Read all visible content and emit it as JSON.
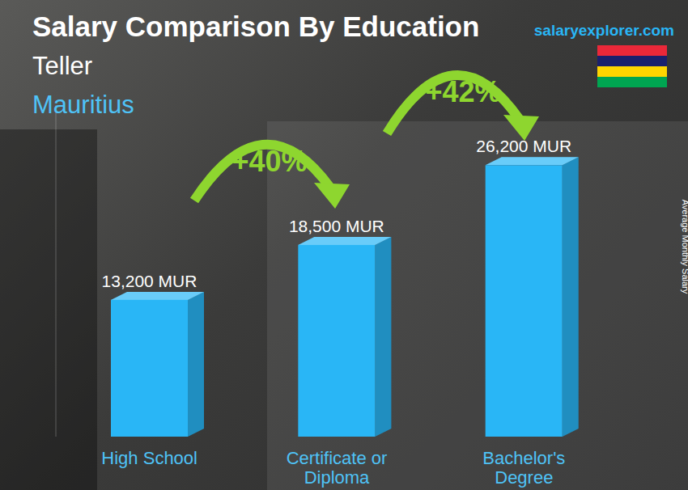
{
  "chart_data": {
    "type": "bar",
    "title": "Salary Comparison By Education",
    "subtitle": [
      "Teller",
      "Mauritius"
    ],
    "source": "salaryexplorer.com",
    "y_label": "Average Monthly Salary",
    "categories": [
      "High School",
      "Certificate or Diploma",
      "Bachelor's Degree"
    ],
    "values": [
      13200,
      18500,
      26200
    ],
    "value_labels": [
      "13,200 MUR",
      "18,500 MUR",
      "26,200 MUR"
    ],
    "color": "#29b6f6",
    "ylim": [
      0,
      32000
    ],
    "yticks": [],
    "tick_labels": "x",
    "data_labels": true,
    "grid": false,
    "annotations": [
      "+40%",
      "+42%"
    ]
  }
}
